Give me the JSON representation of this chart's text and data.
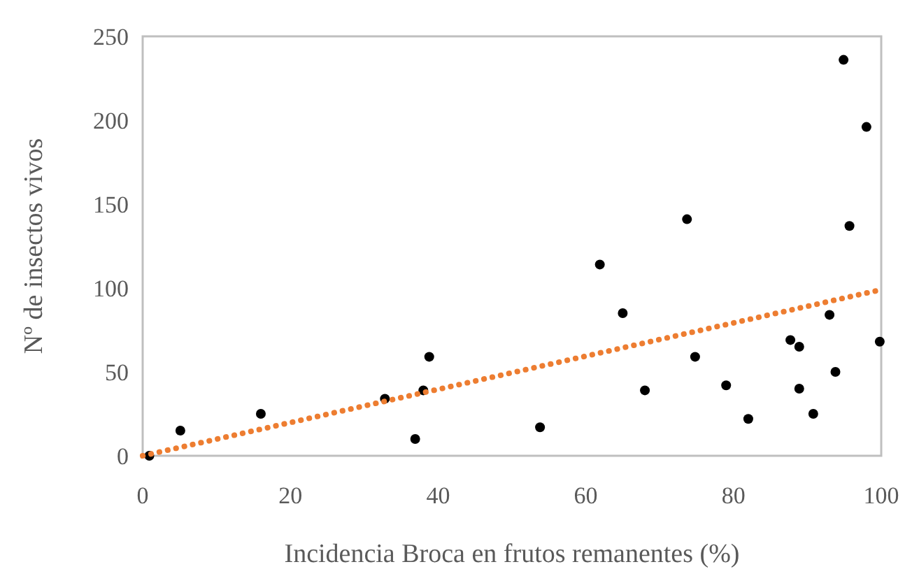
{
  "chart_data": {
    "type": "scatter",
    "xlabel": "Incidencia Broca en frutos remanentes (%)",
    "ylabel": "Nº de insectos vivos",
    "xlim": [
      0,
      100
    ],
    "xticks": [
      0,
      20,
      40,
      60,
      80,
      100
    ],
    "ylim": [
      0,
      250
    ],
    "yticks": [
      0,
      50,
      100,
      150,
      200,
      250
    ],
    "grid": false,
    "series": [
      {
        "color": "#000000",
        "marker": "circle",
        "x": [
          0.9,
          5.1,
          16,
          32.8,
          36.9,
          38,
          38.8,
          53.8,
          61.9,
          65,
          68,
          73.7,
          74.8,
          79,
          82,
          87.7,
          88.9,
          88.9,
          90.8,
          93,
          93.8,
          94.9,
          95.7,
          98,
          99.8
        ],
        "values": [
          0,
          15,
          25,
          34,
          10,
          39,
          59,
          17,
          114,
          85,
          39,
          141,
          59,
          42,
          22,
          69,
          65,
          40,
          25,
          84,
          50,
          236,
          137,
          196,
          68
        ]
      },
      {
        "type": "line",
        "color": "#ed7d31",
        "line_style": "dotted",
        "marker": "none",
        "x": [
          0,
          100
        ],
        "values": [
          0,
          99
        ]
      }
    ]
  }
}
